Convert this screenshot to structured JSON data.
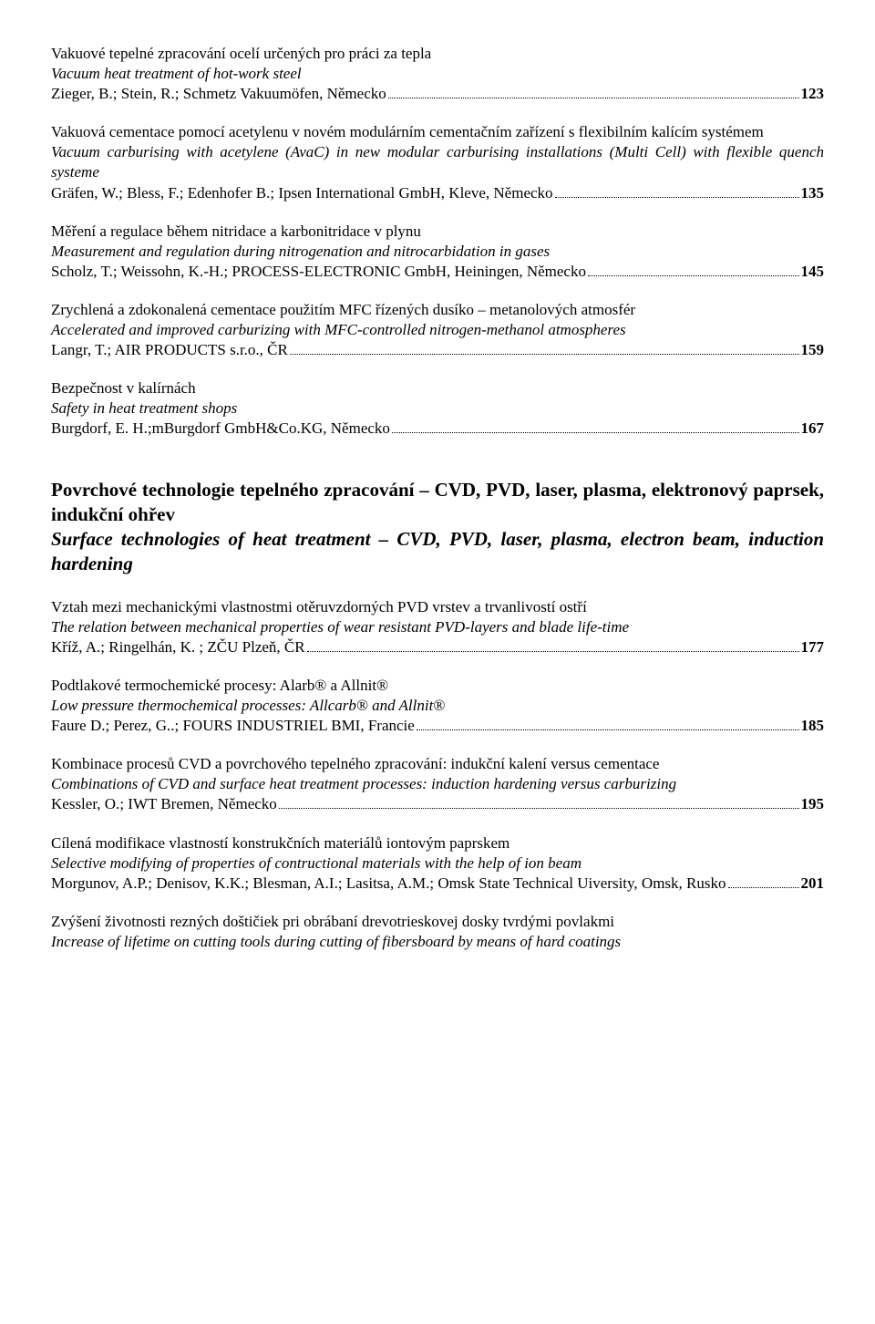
{
  "entries_top": [
    {
      "title_cz": "Vakuové tepelné zpracování ocelí určených pro práci za tepla",
      "title_en": "Vacuum heat treatment of hot-work steel",
      "authors": "Zieger, B.; Stein, R.; Schmetz  Vakuumöfen, Německo",
      "page": "123"
    },
    {
      "title_cz": "Vakuová cementace pomocí acetylenu v novém modulárním cementačním zařízení s flexibilním kalícím systémem",
      "title_en": "Vacuum carburising with acetylene (AvaC) in new modular carburising installations (Multi Cell) with flexible quench systeme",
      "authors": "Gräfen, W.; Bless, F.; Edenhofer B.; Ipsen International GmbH, Kleve, Německo",
      "page": "135"
    },
    {
      "title_cz": "Měření a regulace během nitridace a karbonitridace v plynu",
      "title_en": "Measurement and regulation during nitrogenation and nitrocarbidation in gases",
      "authors": "Scholz, T.; Weissohn, K.-H.; PROCESS-ELECTRONIC GmbH, Heiningen, Německo",
      "page": "145"
    },
    {
      "title_cz": "Zrychlená a zdokonalená cementace použitím MFC řízených dusíko – metanolových atmosfér",
      "title_en": "Accelerated and improved carburizing with MFC-controlled nitrogen-methanol atmospheres",
      "authors": "Langr, T.; AIR PRODUCTS s.r.o., ČR",
      "page": "159"
    },
    {
      "title_cz": "Bezpečnost v kalírnách",
      "title_en": "Safety in heat treatment shops",
      "authors": "Burgdorf, E. H.;mBurgdorf GmbH&Co.KG, Německo",
      "page": "167"
    }
  ],
  "section": {
    "title_cz": "Povrchové technologie tepelného zpracování – CVD, PVD, laser, plasma, elektronový paprsek, indukční ohřev",
    "title_en": "Surface technologies of heat treatment – CVD, PVD, laser, plasma, electron beam, induction hardening"
  },
  "entries_bottom": [
    {
      "title_cz": "Vztah mezi mechanickými vlastnostmi otěruvzdorných PVD vrstev a trvanlivostí ostří",
      "title_en": "The relation between mechanical properties of wear resistant PVD-layers and blade life-time",
      "authors": "Kříž, A.; Ringelhán, K. ; ZČU Plzeň, ČR",
      "page": "177"
    },
    {
      "title_cz": "Podtlakové termochemické procesy: Alarb® a Allnit®",
      "title_en": "Low pressure thermochemical processes: Allcarb® and Allnit®",
      "authors": "Faure D.; Perez, G..; FOURS INDUSTRIEL BMI, Francie",
      "page": "185"
    },
    {
      "title_cz": "Kombinace procesů CVD a povrchového tepelného zpracování: indukční kalení versus cementace",
      "title_en": "Combinations of CVD and surface heat treatment processes: induction hardening versus carburizing",
      "authors": "Kessler, O.; IWT Bremen, Německo",
      "page": "195"
    },
    {
      "title_cz": "Cílená modifikace vlastností konstrukčních materiálů iontovým paprskem",
      "title_en": "Selective modifying of properties of contructional materials with the help of ion beam",
      "authors": "Morgunov, A.P.; Denisov, K.K.; Blesman, A.I.; Lasitsa, A.M.; Omsk State Technical Uiversity, Omsk, Rusko",
      "page": "201"
    }
  ],
  "tail_entry": {
    "title_cz": "Zvýšení životnosti rezných doštičiek pri obrábaní drevotrieskovej dosky tvrdými povlakmi",
    "title_en": "Increase of lifetime on cutting tools during cutting of fibersboard by means of hard coatings"
  }
}
